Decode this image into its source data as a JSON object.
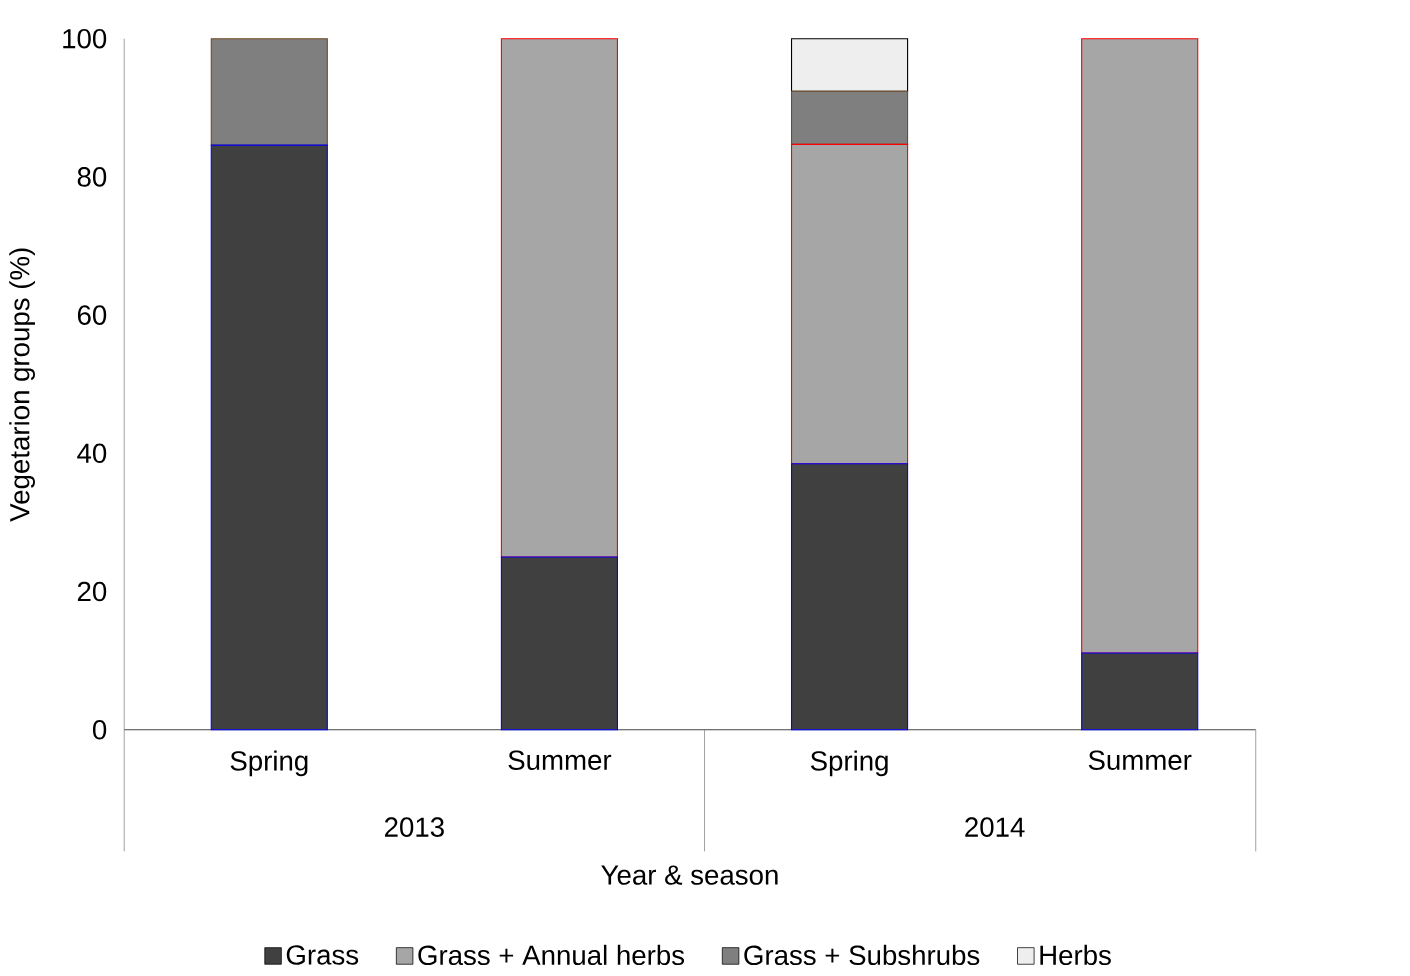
{
  "chart_data": {
    "type": "bar",
    "stacked": true,
    "xlabel": "Year & season",
    "ylabel": "Vegetarion groups (%)",
    "categories": [
      "Spring",
      "Summer",
      "Spring",
      "Summer"
    ],
    "series": [
      {
        "name": "Grass",
        "color": "#404040",
        "values": [
          84.6,
          25.0,
          38.5,
          11.1
        ]
      },
      {
        "name": "Grass + Annual herbs",
        "color": "#a6a6a6",
        "values": [
          null,
          75.0,
          46.2,
          88.9
        ]
      },
      {
        "name": "Grass + Subshrubs",
        "color": "#7f7f7f",
        "values": [
          15.4,
          null,
          7.7,
          null
        ]
      },
      {
        "name": "Herbs",
        "color": "#eeeeee",
        "values": [
          null,
          null,
          7.6,
          null
        ]
      }
    ],
    "annotations": [
      "2013",
      "2014"
    ],
    "ylim": [
      0,
      100
    ],
    "yticks": [
      0,
      20,
      40,
      60,
      80,
      100
    ],
    "grid": false,
    "legend": "bottom"
  }
}
